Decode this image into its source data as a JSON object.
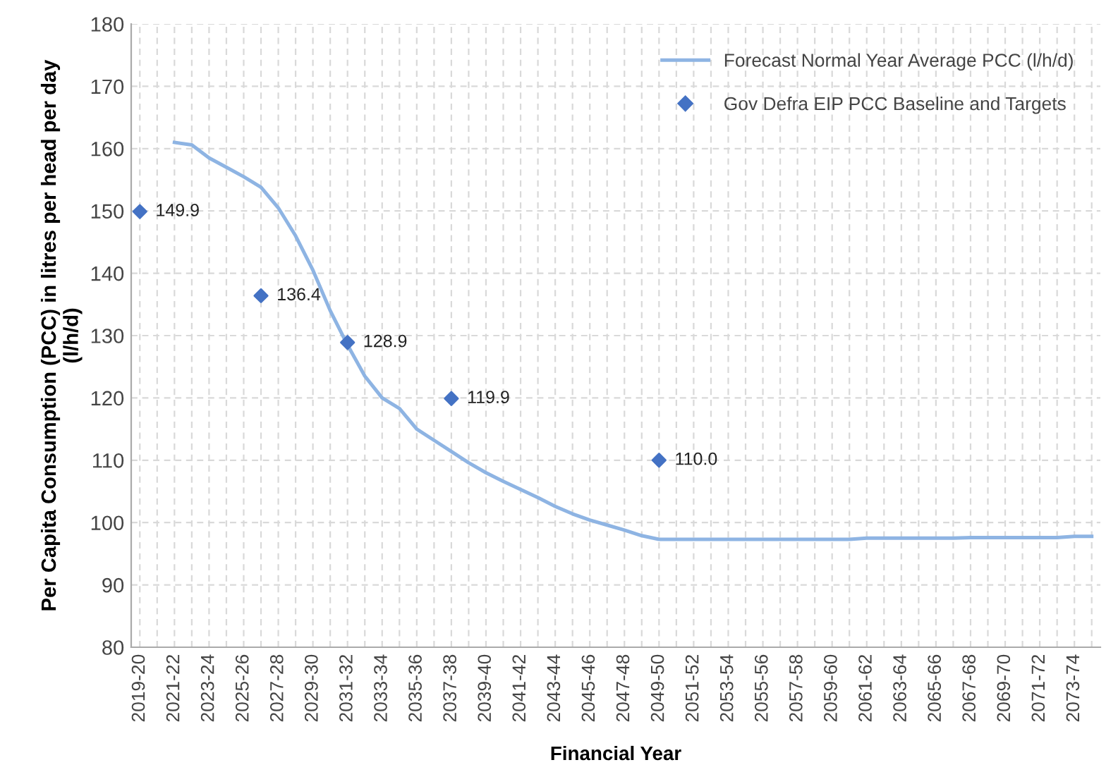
{
  "chart_data": {
    "type": "line",
    "xlabel": "Financial Year",
    "ylabel": "Per Capita Consumption (PCC) in litres per head per day\n(l/h/d)",
    "categories": [
      "2019-20",
      null,
      "2021-22",
      null,
      "2023-24",
      null,
      "2025-26",
      null,
      "2027-28",
      null,
      "2029-30",
      null,
      "2031-32",
      null,
      "2033-34",
      null,
      "2035-36",
      null,
      "2037-38",
      null,
      "2039-40",
      null,
      "2041-42",
      null,
      "2043-44",
      null,
      "2045-46",
      null,
      "2047-48",
      null,
      "2049-50",
      null,
      "2051-52",
      null,
      "2053-54",
      null,
      "2055-56",
      null,
      "2057-58",
      null,
      "2059-60",
      null,
      "2061-62",
      null,
      "2063-64",
      null,
      "2065-66",
      null,
      "2067-68",
      null,
      "2069-70",
      null,
      "2071-72",
      null,
      "2073-74",
      null
    ],
    "series": [
      {
        "name": "Forecast Normal Year Average PCC (l/h/d)",
        "color": "#8eb4e3",
        "marker": "none",
        "values": [
          null,
          null,
          161,
          160.6,
          158.5,
          157,
          155.5,
          153.8,
          150.5,
          146,
          140.5,
          134,
          128.5,
          123.5,
          120,
          118.3,
          115,
          113.2,
          111.4,
          109.6,
          108,
          106.6,
          105.3,
          104,
          102.6,
          101.4,
          100.4,
          99.6,
          98.8,
          97.9,
          97.3,
          97.3,
          97.3,
          97.3,
          97.3,
          97.3,
          97.3,
          97.3,
          97.3,
          97.3,
          97.3,
          97.3,
          97.5,
          97.5,
          97.5,
          97.5,
          97.5,
          97.5,
          97.6,
          97.6,
          97.6,
          97.6,
          97.6,
          97.6,
          97.8,
          97.8
        ]
      },
      {
        "name": "Gov Defra EIP PCC Baseline and Targets",
        "type": "scatter",
        "color": "#4472c4",
        "marker": "diamond",
        "values": [
          149.9,
          null,
          null,
          null,
          null,
          null,
          null,
          136.4,
          null,
          null,
          null,
          null,
          128.9,
          null,
          null,
          null,
          null,
          null,
          119.9,
          null,
          null,
          null,
          null,
          null,
          null,
          null,
          null,
          null,
          null,
          null,
          110.0,
          null,
          null,
          null,
          null,
          null,
          null,
          null,
          null,
          null,
          null,
          null,
          null,
          null,
          null,
          null,
          null,
          null,
          null,
          null,
          null,
          null,
          null,
          null,
          null,
          null
        ],
        "value_labels": [
          "149.9",
          null,
          null,
          null,
          null,
          null,
          null,
          "136.4",
          null,
          null,
          null,
          null,
          "128.9",
          null,
          null,
          null,
          null,
          null,
          "119.9",
          null,
          null,
          null,
          null,
          null,
          null,
          null,
          null,
          null,
          null,
          null,
          "110.0",
          null,
          null,
          null,
          null,
          null,
          null,
          null,
          null,
          null,
          null,
          null,
          null,
          null,
          null,
          null,
          null,
          null,
          null,
          null,
          null,
          null,
          null,
          null,
          null,
          null
        ]
      }
    ],
    "ylim": [
      80,
      180
    ],
    "yticks": [
      80,
      90,
      100,
      110,
      120,
      130,
      140,
      150,
      160,
      170,
      180
    ],
    "grid": true,
    "legend": "top right"
  }
}
